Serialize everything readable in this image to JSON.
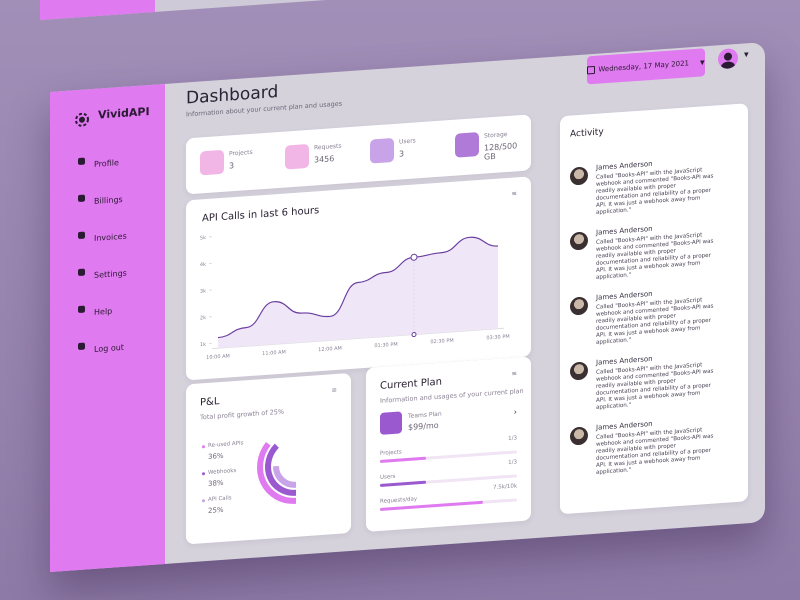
{
  "brand": "VividAPI",
  "nav": [
    "Profile",
    "Billings",
    "Invoices",
    "Settings",
    "Help",
    "Log out"
  ],
  "header": {
    "title": "Dashboard",
    "subtitle": "Information about your current plan and usages",
    "date": "Wednesday, 17 May 2021"
  },
  "stats": [
    {
      "label": "Projects",
      "value": "3"
    },
    {
      "label": "Requests",
      "value": "3456"
    },
    {
      "label": "Users",
      "value": "3"
    },
    {
      "label": "Storage",
      "value": "128/500 GB"
    }
  ],
  "api_chart": {
    "type": "line",
    "title": "API Calls in last 6 hours",
    "categories": [
      "10:00 AM",
      null,
      "11:00 AM",
      null,
      "12:00 AM",
      null,
      "01:30 PM",
      null,
      "02:30 PM",
      null,
      "03:30 PM"
    ],
    "values": [
      1200,
      1500,
      2400,
      1900,
      1700,
      2900,
      3200,
      3700,
      3800,
      4300,
      3900
    ],
    "color": "#6b3fa0",
    "ylim": [
      800,
      5000
    ],
    "yticks": [
      {
        "value": 1000,
        "label": "1k"
      },
      {
        "value": 2000,
        "label": "2k"
      },
      {
        "value": 3000,
        "label": "3k"
      },
      {
        "value": 4000,
        "label": "4k"
      },
      {
        "value": 5000,
        "label": "5k"
      }
    ]
  },
  "pnl": {
    "type": "pie",
    "title": "P&L",
    "subtitle": "Total profit growth of 25%",
    "series": [
      {
        "name": "Re-used APIs",
        "color": "#e07af0",
        "value": 36,
        "value_label": "36%"
      },
      {
        "name": "Webhooks",
        "color": "#9b59d0",
        "value": 38,
        "value_label": "38%"
      },
      {
        "name": "API Calls",
        "color": "#c9a3e8",
        "value": 25,
        "value_label": "25%"
      }
    ]
  },
  "plan": {
    "title": "Current Plan",
    "subtitle": "Information and usages of your current plan",
    "name": "Teams Plan",
    "price": "$99/mo",
    "usage": [
      {
        "label": "Projects",
        "text": "1/3",
        "used": 1,
        "total": 3,
        "color": "#e07af0"
      },
      {
        "label": "Users",
        "text": "1/3",
        "used": 1,
        "total": 3,
        "color": "#9b59d0"
      },
      {
        "label": "Requests/day",
        "text": "7.5k/10k",
        "used": 7500,
        "total": 10000,
        "color": "#e07af0"
      }
    ]
  },
  "activity": {
    "title": "Activity",
    "items": [
      {
        "name": "James Anderson",
        "text": "Called \"Books-API\" with the JavaScript webhook and commented \"Books-API was readily available with proper documentation and reliability of a proper API. It was just a webhook away from application.\""
      },
      {
        "name": "James Anderson",
        "text": "Called \"Books-API\" with the JavaScript webhook and commented \"Books-API was readily available with proper documentation and reliability of a proper API. It was just a webhook away from application.\""
      },
      {
        "name": "James Anderson",
        "text": "Called \"Books-API\" with the JavaScript webhook and commented \"Books-API was readily available with proper documentation and reliability of a proper API. It was just a webhook away from application.\""
      },
      {
        "name": "James Anderson",
        "text": "Called \"Books-API\" with the JavaScript webhook and commented \"Books-API was readily available with proper documentation and reliability of a proper API. It was just a webhook away from application.\""
      },
      {
        "name": "James Anderson",
        "text": "Called \"Books-API\" with the JavaScript webhook and commented \"Books-API was readily available with proper documentation and reliability of a proper API. It was just a webhook away from application.\""
      }
    ]
  }
}
